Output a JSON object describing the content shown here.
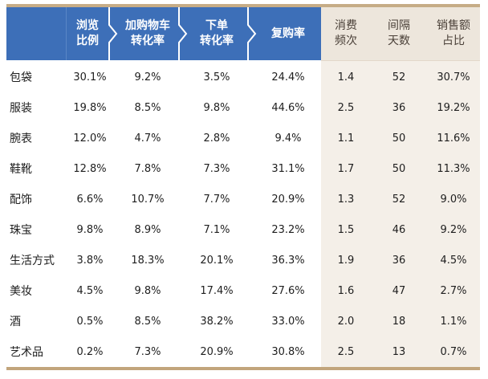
{
  "colors": {
    "header_blue": "#3d6fb8",
    "header_beige": "#ede6dc",
    "beige_body": "#f4efe8",
    "gold_rule": "#c6ac86"
  },
  "table": {
    "headers": [
      {
        "line1": "",
        "line2": ""
      },
      {
        "line1": "浏览",
        "line2": "比例"
      },
      {
        "line1": "加购物车",
        "line2": "转化率"
      },
      {
        "line1": "下单",
        "line2": "转化率"
      },
      {
        "line1": "复购率",
        "line2": ""
      },
      {
        "line1": "消费",
        "line2": "频次"
      },
      {
        "line1": "间隔",
        "line2": "天数"
      },
      {
        "line1": "销售额",
        "line2": "占比"
      }
    ],
    "rows": [
      {
        "category": "包袋",
        "browse_ratio": "30.1%",
        "cart_conversion": "9.2%",
        "order_conversion": "3.5%",
        "repurchase_rate": "24.4%",
        "frequency": "1.4",
        "interval_days": "52",
        "sales_share": "30.7%"
      },
      {
        "category": "服装",
        "browse_ratio": "19.8%",
        "cart_conversion": "8.5%",
        "order_conversion": "9.8%",
        "repurchase_rate": "44.6%",
        "frequency": "2.5",
        "interval_days": "36",
        "sales_share": "19.2%"
      },
      {
        "category": "腕表",
        "browse_ratio": "12.0%",
        "cart_conversion": "4.7%",
        "order_conversion": "2.8%",
        "repurchase_rate": "9.4%",
        "frequency": "1.1",
        "interval_days": "50",
        "sales_share": "11.6%"
      },
      {
        "category": "鞋靴",
        "browse_ratio": "12.8%",
        "cart_conversion": "7.8%",
        "order_conversion": "7.3%",
        "repurchase_rate": "31.1%",
        "frequency": "1.7",
        "interval_days": "50",
        "sales_share": "11.3%"
      },
      {
        "category": "配饰",
        "browse_ratio": "6.6%",
        "cart_conversion": "10.7%",
        "order_conversion": "7.7%",
        "repurchase_rate": "20.9%",
        "frequency": "1.3",
        "interval_days": "52",
        "sales_share": "9.0%"
      },
      {
        "category": "珠宝",
        "browse_ratio": "9.8%",
        "cart_conversion": "8.9%",
        "order_conversion": "7.1%",
        "repurchase_rate": "23.2%",
        "frequency": "1.5",
        "interval_days": "46",
        "sales_share": "9.2%"
      },
      {
        "category": "生活方式",
        "browse_ratio": "3.8%",
        "cart_conversion": "18.3%",
        "order_conversion": "20.1%",
        "repurchase_rate": "36.3%",
        "frequency": "1.9",
        "interval_days": "36",
        "sales_share": "4.5%"
      },
      {
        "category": "美妆",
        "browse_ratio": "4.5%",
        "cart_conversion": "9.8%",
        "order_conversion": "17.4%",
        "repurchase_rate": "27.6%",
        "frequency": "1.6",
        "interval_days": "47",
        "sales_share": "2.7%"
      },
      {
        "category": "酒",
        "browse_ratio": "0.5%",
        "cart_conversion": "8.5%",
        "order_conversion": "38.2%",
        "repurchase_rate": "33.0%",
        "frequency": "2.0",
        "interval_days": "18",
        "sales_share": "1.1%"
      },
      {
        "category": "艺术品",
        "browse_ratio": "0.2%",
        "cart_conversion": "7.3%",
        "order_conversion": "20.9%",
        "repurchase_rate": "30.8%",
        "frequency": "2.5",
        "interval_days": "13",
        "sales_share": "0.7%"
      }
    ]
  }
}
